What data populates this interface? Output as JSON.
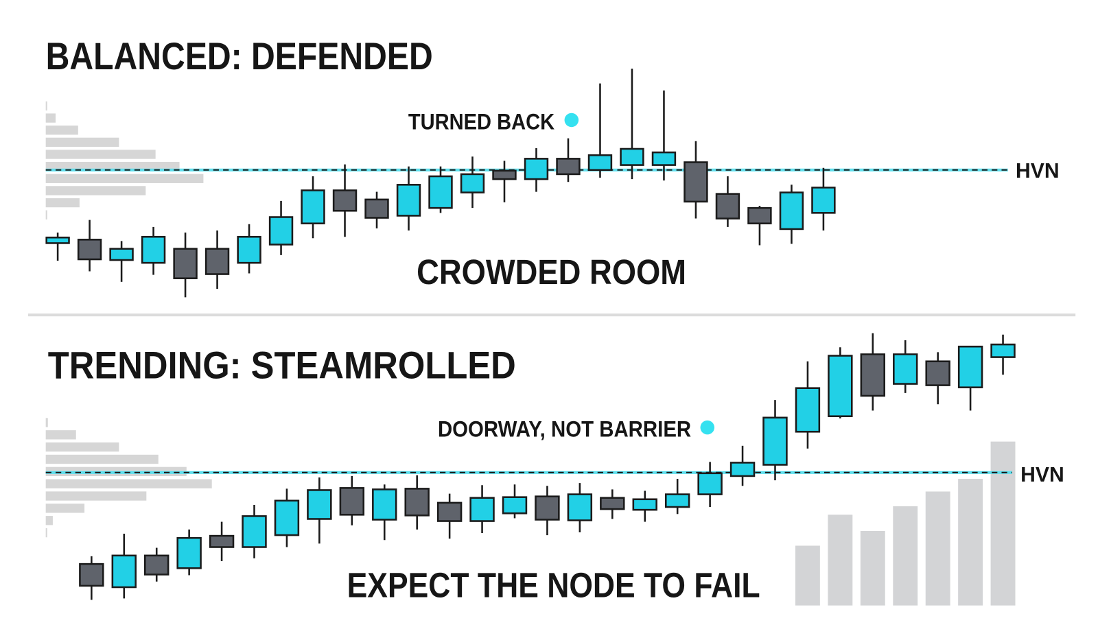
{
  "chart_data": [
    {
      "type": "candlestick",
      "title": "BALANCED: DEFENDED",
      "annotation": "TURNED BACK",
      "caption": "CROWDED ROOM",
      "level": {
        "label": "HVN",
        "value": 189
      },
      "up_color": "#22d0e6",
      "down_color": "#5f636b",
      "ylim": [
        0,
        340
      ],
      "open": [
        85,
        90,
        61,
        57,
        77,
        77,
        57,
        83,
        113,
        160,
        147,
        124,
        135,
        157,
        188,
        176,
        205,
        189,
        196,
        196,
        200,
        155,
        135,
        105,
        128
      ],
      "close": [
        93,
        62,
        77,
        94,
        35,
        41,
        94,
        122,
        160,
        131,
        121,
        168,
        180,
        183,
        176,
        205,
        183,
        210,
        219,
        214,
        144,
        120,
        113,
        157,
        164
      ],
      "high": [
        100,
        118,
        88,
        108,
        100,
        103,
        112,
        145,
        180,
        197,
        158,
        194,
        194,
        208,
        202,
        220,
        234,
        312,
        333,
        302,
        230,
        180,
        138,
        168,
        192
      ],
      "low": [
        60,
        45,
        30,
        40,
        8,
        20,
        42,
        68,
        92,
        94,
        106,
        103,
        128,
        135,
        143,
        158,
        172,
        178,
        176,
        174,
        120,
        108,
        82,
        84,
        103
      ],
      "profile": [
        2,
        14,
        46,
        104,
        156,
        190,
        224,
        142,
        48,
        2
      ],
      "profile_xlim": [
        0,
        240
      ]
    },
    {
      "type": "candlestick",
      "title": "TRENDING: STEAMROLLED",
      "annotation": "DOORWAY, NOT BARRIER",
      "caption": "EXPECT THE NODE TO FAIL",
      "level": {
        "label": "HVN",
        "value": 189
      },
      "up_color": "#22d0e6",
      "down_color": "#5f636b",
      "ylim": [
        0,
        400
      ],
      "open": [
        59,
        26,
        71,
        53,
        99,
        83,
        100,
        123,
        167,
        122,
        166,
        146,
        120,
        131,
        155,
        121,
        153,
        136,
        140,
        158,
        184,
        200,
        247,
        269,
        357,
        315,
        347,
        310,
        353
      ],
      "close": [
        28,
        71,
        44,
        96,
        83,
        127,
        149,
        164,
        129,
        165,
        128,
        120,
        153,
        154,
        122,
        158,
        137,
        151,
        158,
        188,
        203,
        267,
        309,
        355,
        298,
        357,
        313,
        368,
        371
      ],
      "high": [
        70,
        102,
        82,
        108,
        119,
        143,
        166,
        182,
        184,
        172,
        185,
        159,
        171,
        172,
        170,
        174,
        165,
        163,
        180,
        204,
        227,
        292,
        347,
        367,
        387,
        377,
        360,
        368,
        385
      ],
      "low": [
        8,
        10,
        34,
        43,
        63,
        67,
        83,
        88,
        114,
        93,
        108,
        95,
        103,
        124,
        100,
        104,
        123,
        119,
        130,
        140,
        170,
        178,
        223,
        266,
        277,
        302,
        286,
        277,
        328
      ],
      "volume": [
        null,
        null,
        null,
        null,
        null,
        null,
        null,
        null,
        null,
        null,
        null,
        null,
        null,
        null,
        null,
        null,
        null,
        null,
        null,
        null,
        null,
        null,
        85,
        129,
        106,
        141,
        162,
        180,
        233
      ],
      "volume_color": "#d3d4d6",
      "profile": [
        3,
        43,
        104,
        160,
        200,
        236,
        143,
        55,
        10,
        2
      ],
      "profile_xlim": [
        0,
        240
      ]
    }
  ]
}
